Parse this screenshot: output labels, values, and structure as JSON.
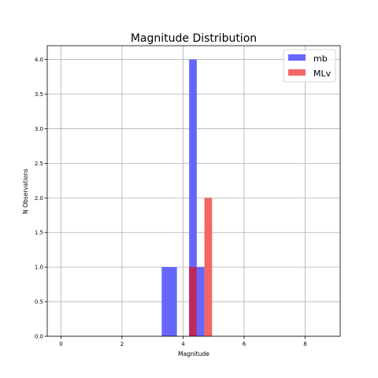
{
  "chart_data": {
    "type": "bar",
    "title": "Magnitude Distribution",
    "xlabel": "Magnitude",
    "ylabel": "N Observations",
    "xlim": [
      -0.45,
      9.15
    ],
    "ylim": [
      0,
      4.2
    ],
    "xticks": [
      0,
      2,
      4,
      6,
      8
    ],
    "yticks": [
      0.0,
      0.5,
      1.0,
      1.5,
      2.0,
      2.5,
      3.0,
      3.5,
      4.0
    ],
    "grid": true,
    "legend_position": "top-right",
    "series": [
      {
        "name": "mb",
        "color": "#6666ff",
        "bins": [
          {
            "x0": 3.3,
            "x1": 3.8,
            "count": 1
          },
          {
            "x0": 4.2,
            "x1": 4.45,
            "count": 4
          },
          {
            "x0": 4.45,
            "x1": 4.7,
            "count": 1
          }
        ]
      },
      {
        "name": "MLv",
        "color": "#f46666",
        "bins": [
          {
            "x0": 4.2,
            "x1": 4.45,
            "count": 1
          },
          {
            "x0": 4.7,
            "x1": 4.95,
            "count": 2
          }
        ]
      }
    ],
    "overlap_color": "#c0295c"
  }
}
